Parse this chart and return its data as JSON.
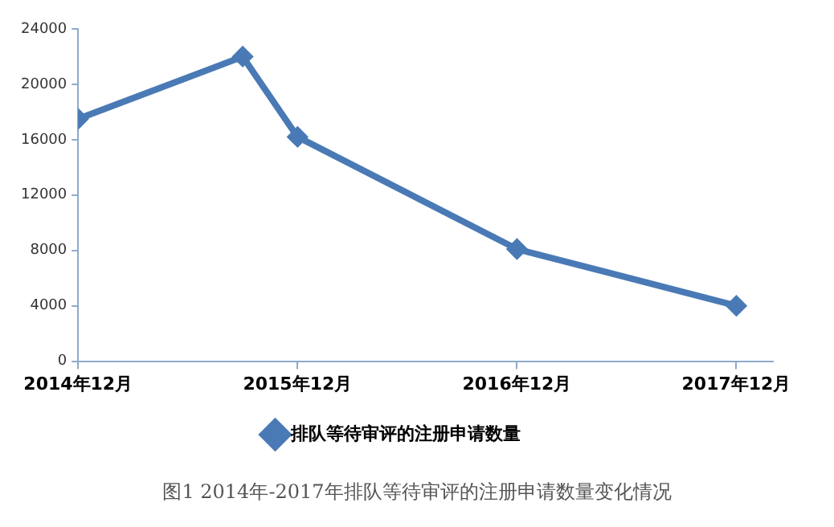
{
  "chart_data": {
    "type": "line",
    "x": [
      "2014-12",
      "2015-09",
      "2015-12",
      "2016-12",
      "2017-12"
    ],
    "series": [
      {
        "name": "排队等待审评的注册申请数量",
        "color": "#4a7ab5",
        "values": [
          17500,
          22000,
          16200,
          8100,
          4000
        ]
      }
    ],
    "xlim": [
      "2014-12",
      "2018-02"
    ],
    "xticks": [
      {
        "value": "2014-12",
        "label": "2014年12月"
      },
      {
        "value": "2015-12",
        "label": "2015年12月"
      },
      {
        "value": "2016-12",
        "label": "2016年12月"
      },
      {
        "value": "2017-12",
        "label": "2017年12月"
      }
    ],
    "ylim": [
      0,
      24000
    ],
    "yticks": [
      0,
      4000,
      8000,
      12000,
      16000,
      20000,
      24000
    ],
    "grid": false,
    "legend": "bottom",
    "marker": "diamond",
    "line_style": "solid",
    "annotations": [
      "图1 2014年-2017年排队等待审评的注册申请数量变化情况"
    ]
  }
}
